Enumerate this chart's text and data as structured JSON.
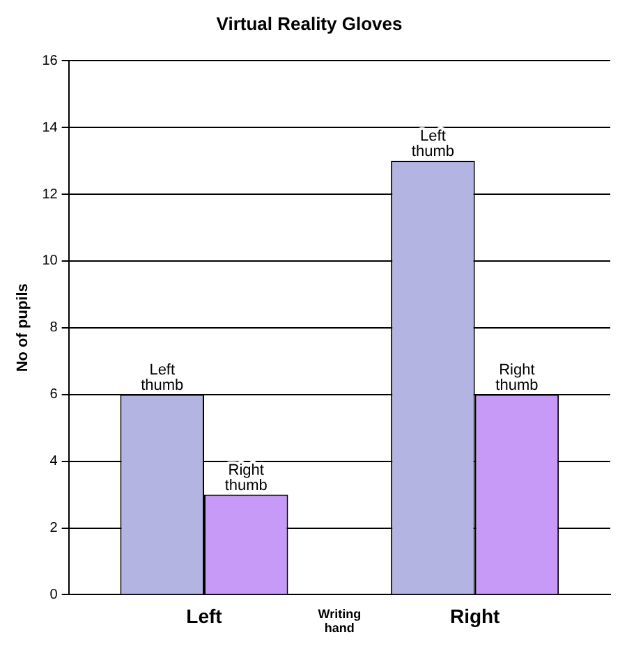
{
  "chart_data": {
    "type": "bar",
    "title": "Virtual Reality Gloves",
    "xlabel": "Writing hand",
    "ylabel": "No of pupils",
    "categories": [
      "Left",
      "Right"
    ],
    "series": [
      {
        "name": "Left thumb",
        "color": "#b4b4e2",
        "values": [
          6,
          13
        ]
      },
      {
        "name": "Right thumb",
        "color": "#c89af8",
        "values": [
          3,
          6
        ]
      }
    ],
    "ylim": [
      0,
      16
    ],
    "yticks": [
      0,
      2,
      4,
      6,
      8,
      10,
      12,
      14,
      16
    ],
    "grid": "y"
  }
}
